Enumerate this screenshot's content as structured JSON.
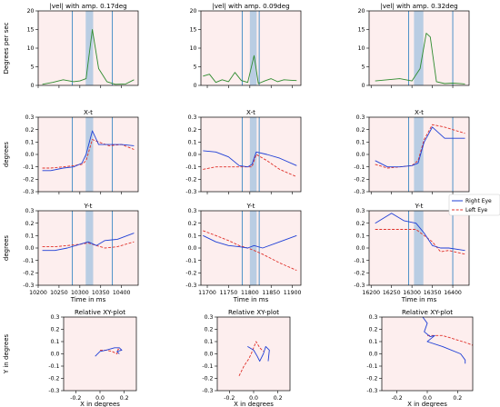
{
  "chart_data": {
    "type": "line",
    "colors": {
      "right_eye": "#1f3fd6",
      "left_eye": "#e0312a",
      "velocity": "#2e8b2e",
      "event_line": "#3b88c4",
      "highlight": "#b9cde3",
      "background": "#fdeeee"
    },
    "legend": {
      "placement": "right, beside Y-t panel 3",
      "entries": [
        "Right Eye",
        "Left Eye"
      ]
    },
    "columns": [
      {
        "vel": {
          "title": "|vel| with amp. 0.17deg",
          "ylabel": "Degrees per sec",
          "ylim": [
            0,
            20
          ],
          "yticks": [
            0,
            5,
            10,
            15,
            20
          ],
          "x": [
            10210,
            10235,
            10260,
            10285,
            10300,
            10315,
            10330,
            10345,
            10365,
            10385,
            10410,
            10430
          ],
          "values": [
            0.3,
            0.8,
            1.5,
            1.0,
            1.2,
            1.8,
            15.0,
            4.5,
            1.0,
            0.3,
            0.4,
            1.5
          ]
        },
        "xt": {
          "title": "X-t",
          "ylabel": "degrees",
          "ylim": [
            -0.3,
            0.3
          ],
          "yticks": [
            -0.3,
            -0.2,
            -0.1,
            0.0,
            0.1,
            0.2,
            0.3
          ],
          "right_x": [
            10210,
            10230,
            10260,
            10285,
            10305,
            10315,
            10330,
            10345,
            10370,
            10400,
            10430
          ],
          "right_y": [
            -0.13,
            -0.13,
            -0.11,
            -0.1,
            -0.07,
            0.0,
            0.19,
            0.08,
            0.08,
            0.08,
            0.07
          ],
          "left_x": [
            10210,
            10230,
            10260,
            10285,
            10305,
            10315,
            10330,
            10345,
            10370,
            10400,
            10430
          ],
          "left_y": [
            -0.11,
            -0.11,
            -0.1,
            -0.09,
            -0.08,
            -0.05,
            0.12,
            0.1,
            0.07,
            0.08,
            0.04
          ]
        },
        "yt": {
          "title": "Y-t",
          "ylabel": "degrees",
          "xlabel": "Time in ms",
          "ylim": [
            -0.3,
            0.3
          ],
          "yticks": [
            -0.3,
            -0.2,
            -0.1,
            0.0,
            0.1,
            0.2,
            0.3
          ],
          "xlim": [
            10200,
            10440
          ],
          "xticks": [
            10200,
            10250,
            10300,
            10350,
            10400
          ],
          "right_x": [
            10210,
            10240,
            10270,
            10300,
            10320,
            10340,
            10360,
            10390,
            10430
          ],
          "right_y": [
            -0.02,
            -0.02,
            0.0,
            0.03,
            0.05,
            0.02,
            0.06,
            0.07,
            0.12
          ],
          "left_x": [
            10210,
            10240,
            10270,
            10300,
            10320,
            10340,
            10360,
            10390,
            10430
          ],
          "left_y": [
            0.01,
            0.01,
            0.02,
            0.03,
            0.04,
            0.02,
            0.0,
            0.01,
            0.05
          ]
        },
        "xlim": [
          10200,
          10440
        ],
        "events": [
          10282,
          10378
        ],
        "highlight": [
          10314,
          10332
        ],
        "xy": {
          "title": "Relative XY-plot",
          "ylabel": "Y in degrees",
          "xlabel": "X in degrees",
          "xlim": [
            -0.3,
            0.3
          ],
          "ylim": [
            -0.3,
            0.3
          ],
          "xticks": [
            -0.2,
            0.0,
            0.2
          ],
          "yticks": [
            -0.3,
            -0.2,
            -0.1,
            0.0,
            0.1,
            0.2,
            0.3
          ],
          "right": [
            [
              -0.04,
              -0.02
            ],
            [
              0.0,
              0.02
            ],
            [
              0.05,
              0.03
            ],
            [
              0.12,
              0.05
            ],
            [
              0.16,
              0.05
            ],
            [
              0.18,
              0.03
            ],
            [
              0.14,
              0.02
            ],
            [
              0.16,
              0.0
            ]
          ],
          "left": [
            [
              0.0,
              0.03
            ],
            [
              0.05,
              0.03
            ],
            [
              0.1,
              0.02
            ],
            [
              0.14,
              0.0
            ],
            [
              0.15,
              0.04
            ],
            [
              0.17,
              0.03
            ]
          ]
        }
      },
      {
        "vel": {
          "title": "|vel| with amp. 0.09deg",
          "ylim": [
            0,
            20
          ],
          "yticks": [
            0,
            5,
            10,
            15,
            20
          ],
          "x": [
            11690,
            11705,
            11720,
            11735,
            11750,
            11765,
            11780,
            11795,
            11810,
            11820,
            11835,
            11850,
            11865,
            11880,
            11895,
            11910
          ],
          "values": [
            2.5,
            3.0,
            0.8,
            1.5,
            1.0,
            3.5,
            1.3,
            0.8,
            8.0,
            0.5,
            1.2,
            1.8,
            1.0,
            1.5,
            1.4,
            1.3
          ]
        },
        "xt": {
          "title": "X-t",
          "ylim": [
            -0.3,
            0.3
          ],
          "yticks": [
            -0.3,
            -0.2,
            -0.1,
            0.0,
            0.1,
            0.2,
            0.3
          ],
          "right_x": [
            11690,
            11720,
            11750,
            11775,
            11795,
            11805,
            11815,
            11840,
            11870,
            11910
          ],
          "right_y": [
            0.03,
            0.02,
            -0.02,
            -0.09,
            -0.1,
            -0.08,
            0.02,
            0.0,
            -0.03,
            -0.09
          ],
          "left_x": [
            11690,
            11720,
            11750,
            11775,
            11795,
            11805,
            11815,
            11840,
            11870,
            11910
          ],
          "left_y": [
            -0.12,
            -0.1,
            -0.1,
            -0.1,
            -0.1,
            -0.1,
            0.0,
            -0.05,
            -0.12,
            -0.18
          ]
        },
        "yt": {
          "title": "Y-t",
          "xlabel": "Time in ms",
          "ylim": [
            -0.3,
            0.3
          ],
          "yticks": [
            -0.3,
            -0.2,
            -0.1,
            0.0,
            0.1,
            0.2,
            0.3
          ],
          "xlim": [
            11685,
            11920
          ],
          "xticks": [
            11700,
            11750,
            11800,
            11850,
            11900
          ],
          "right_x": [
            11690,
            11720,
            11750,
            11775,
            11795,
            11810,
            11830,
            11870,
            11910
          ],
          "right_y": [
            0.1,
            0.05,
            0.02,
            0.01,
            0.0,
            0.02,
            0.0,
            0.05,
            0.1
          ],
          "left_x": [
            11690,
            11720,
            11750,
            11775,
            11795,
            11810,
            11830,
            11870,
            11910
          ],
          "left_y": [
            0.14,
            0.1,
            0.06,
            0.02,
            0.0,
            -0.02,
            -0.05,
            -0.12,
            -0.18
          ]
        },
        "xlim": [
          11685,
          11920
        ],
        "events": [
          11782,
          11822
        ],
        "highlight": [
          11800,
          11816
        ],
        "xy": {
          "title": "Relative XY-plot",
          "xlabel": "X in degrees",
          "xlim": [
            -0.3,
            0.3
          ],
          "ylim": [
            -0.3,
            0.3
          ],
          "xticks": [
            -0.2,
            0.0,
            0.2
          ],
          "yticks": [
            -0.3,
            -0.2,
            -0.1,
            0.0,
            0.1,
            0.2,
            0.3
          ],
          "right": [
            [
              -0.05,
              0.06
            ],
            [
              0.0,
              0.03
            ],
            [
              0.03,
              -0.02
            ],
            [
              0.05,
              -0.06
            ],
            [
              0.08,
              0.0
            ],
            [
              0.1,
              0.06
            ],
            [
              0.13,
              0.03
            ],
            [
              0.12,
              -0.06
            ]
          ],
          "left": [
            [
              -0.12,
              -0.18
            ],
            [
              -0.08,
              -0.1
            ],
            [
              -0.04,
              -0.04
            ],
            [
              -0.02,
              0.0
            ],
            [
              0.0,
              0.05
            ],
            [
              0.02,
              0.1
            ],
            [
              0.05,
              0.05
            ],
            [
              0.08,
              0.02
            ]
          ]
        }
      },
      {
        "vel": {
          "title": "|vel| with amp. 0.32deg",
          "ylim": [
            0,
            20
          ],
          "yticks": [
            0,
            5,
            10,
            15,
            20
          ],
          "x": [
            16210,
            16240,
            16270,
            16300,
            16320,
            16335,
            16345,
            16360,
            16380,
            16400,
            16430
          ],
          "values": [
            1.2,
            1.5,
            1.8,
            1.2,
            4.5,
            14.0,
            13.0,
            1.0,
            0.5,
            0.6,
            0.4
          ]
        },
        "xt": {
          "title": "X-t",
          "ylim": [
            -0.3,
            0.3
          ],
          "yticks": [
            -0.3,
            -0.2,
            -0.1,
            0.0,
            0.1,
            0.2,
            0.3
          ],
          "right_x": [
            16210,
            16240,
            16270,
            16300,
            16315,
            16330,
            16350,
            16380,
            16430
          ],
          "right_y": [
            -0.05,
            -0.1,
            -0.1,
            -0.09,
            -0.07,
            0.1,
            0.22,
            0.13,
            0.13
          ],
          "left_x": [
            16210,
            16240,
            16270,
            16300,
            16315,
            16330,
            16350,
            16380,
            16430
          ],
          "left_y": [
            -0.08,
            -0.11,
            -0.1,
            -0.09,
            -0.05,
            0.12,
            0.24,
            0.22,
            0.17
          ]
        },
        "yt": {
          "title": "Y-t",
          "xlabel": "Time in ms",
          "ylim": [
            -0.3,
            0.3
          ],
          "yticks": [
            -0.3,
            -0.2,
            -0.1,
            0.0,
            0.1,
            0.2,
            0.3
          ],
          "xlim": [
            16195,
            16440
          ],
          "xticks": [
            16200,
            16250,
            16300,
            16350,
            16400
          ],
          "right_x": [
            16210,
            16250,
            16280,
            16310,
            16330,
            16350,
            16370,
            16390,
            16430
          ],
          "right_y": [
            0.2,
            0.28,
            0.22,
            0.2,
            0.12,
            0.02,
            0.0,
            0.0,
            -0.02
          ],
          "left_x": [
            16210,
            16250,
            16280,
            16310,
            16330,
            16350,
            16370,
            16390,
            16430
          ],
          "left_y": [
            0.15,
            0.15,
            0.15,
            0.15,
            0.1,
            0.05,
            -0.03,
            -0.02,
            -0.05
          ]
        },
        "xlim": [
          16195,
          16440
        ],
        "events": [
          16292,
          16400
        ],
        "highlight": [
          16305,
          16328
        ],
        "xy": {
          "title": "Relative XY-plot",
          "xlabel": "X in degrees",
          "xlim": [
            -0.3,
            0.3
          ],
          "ylim": [
            -0.3,
            0.3
          ],
          "xticks": [
            -0.2,
            0.0,
            0.2
          ],
          "yticks": [
            -0.3,
            -0.2,
            -0.1,
            0.0,
            0.1,
            0.2,
            0.3
          ],
          "right": [
            [
              -0.03,
              0.3
            ],
            [
              0.0,
              0.25
            ],
            [
              -0.02,
              0.18
            ],
            [
              0.02,
              0.14
            ],
            [
              0.05,
              0.15
            ],
            [
              0.02,
              0.12
            ],
            [
              0.0,
              0.1
            ],
            [
              0.1,
              0.06
            ],
            [
              0.22,
              0.0
            ],
            [
              0.25,
              -0.05
            ],
            [
              0.25,
              -0.08
            ]
          ],
          "left": [
            [
              0.0,
              0.15
            ],
            [
              0.1,
              0.15
            ],
            [
              0.18,
              0.12
            ],
            [
              0.26,
              0.09
            ],
            [
              0.3,
              0.07
            ]
          ]
        }
      }
    ]
  }
}
